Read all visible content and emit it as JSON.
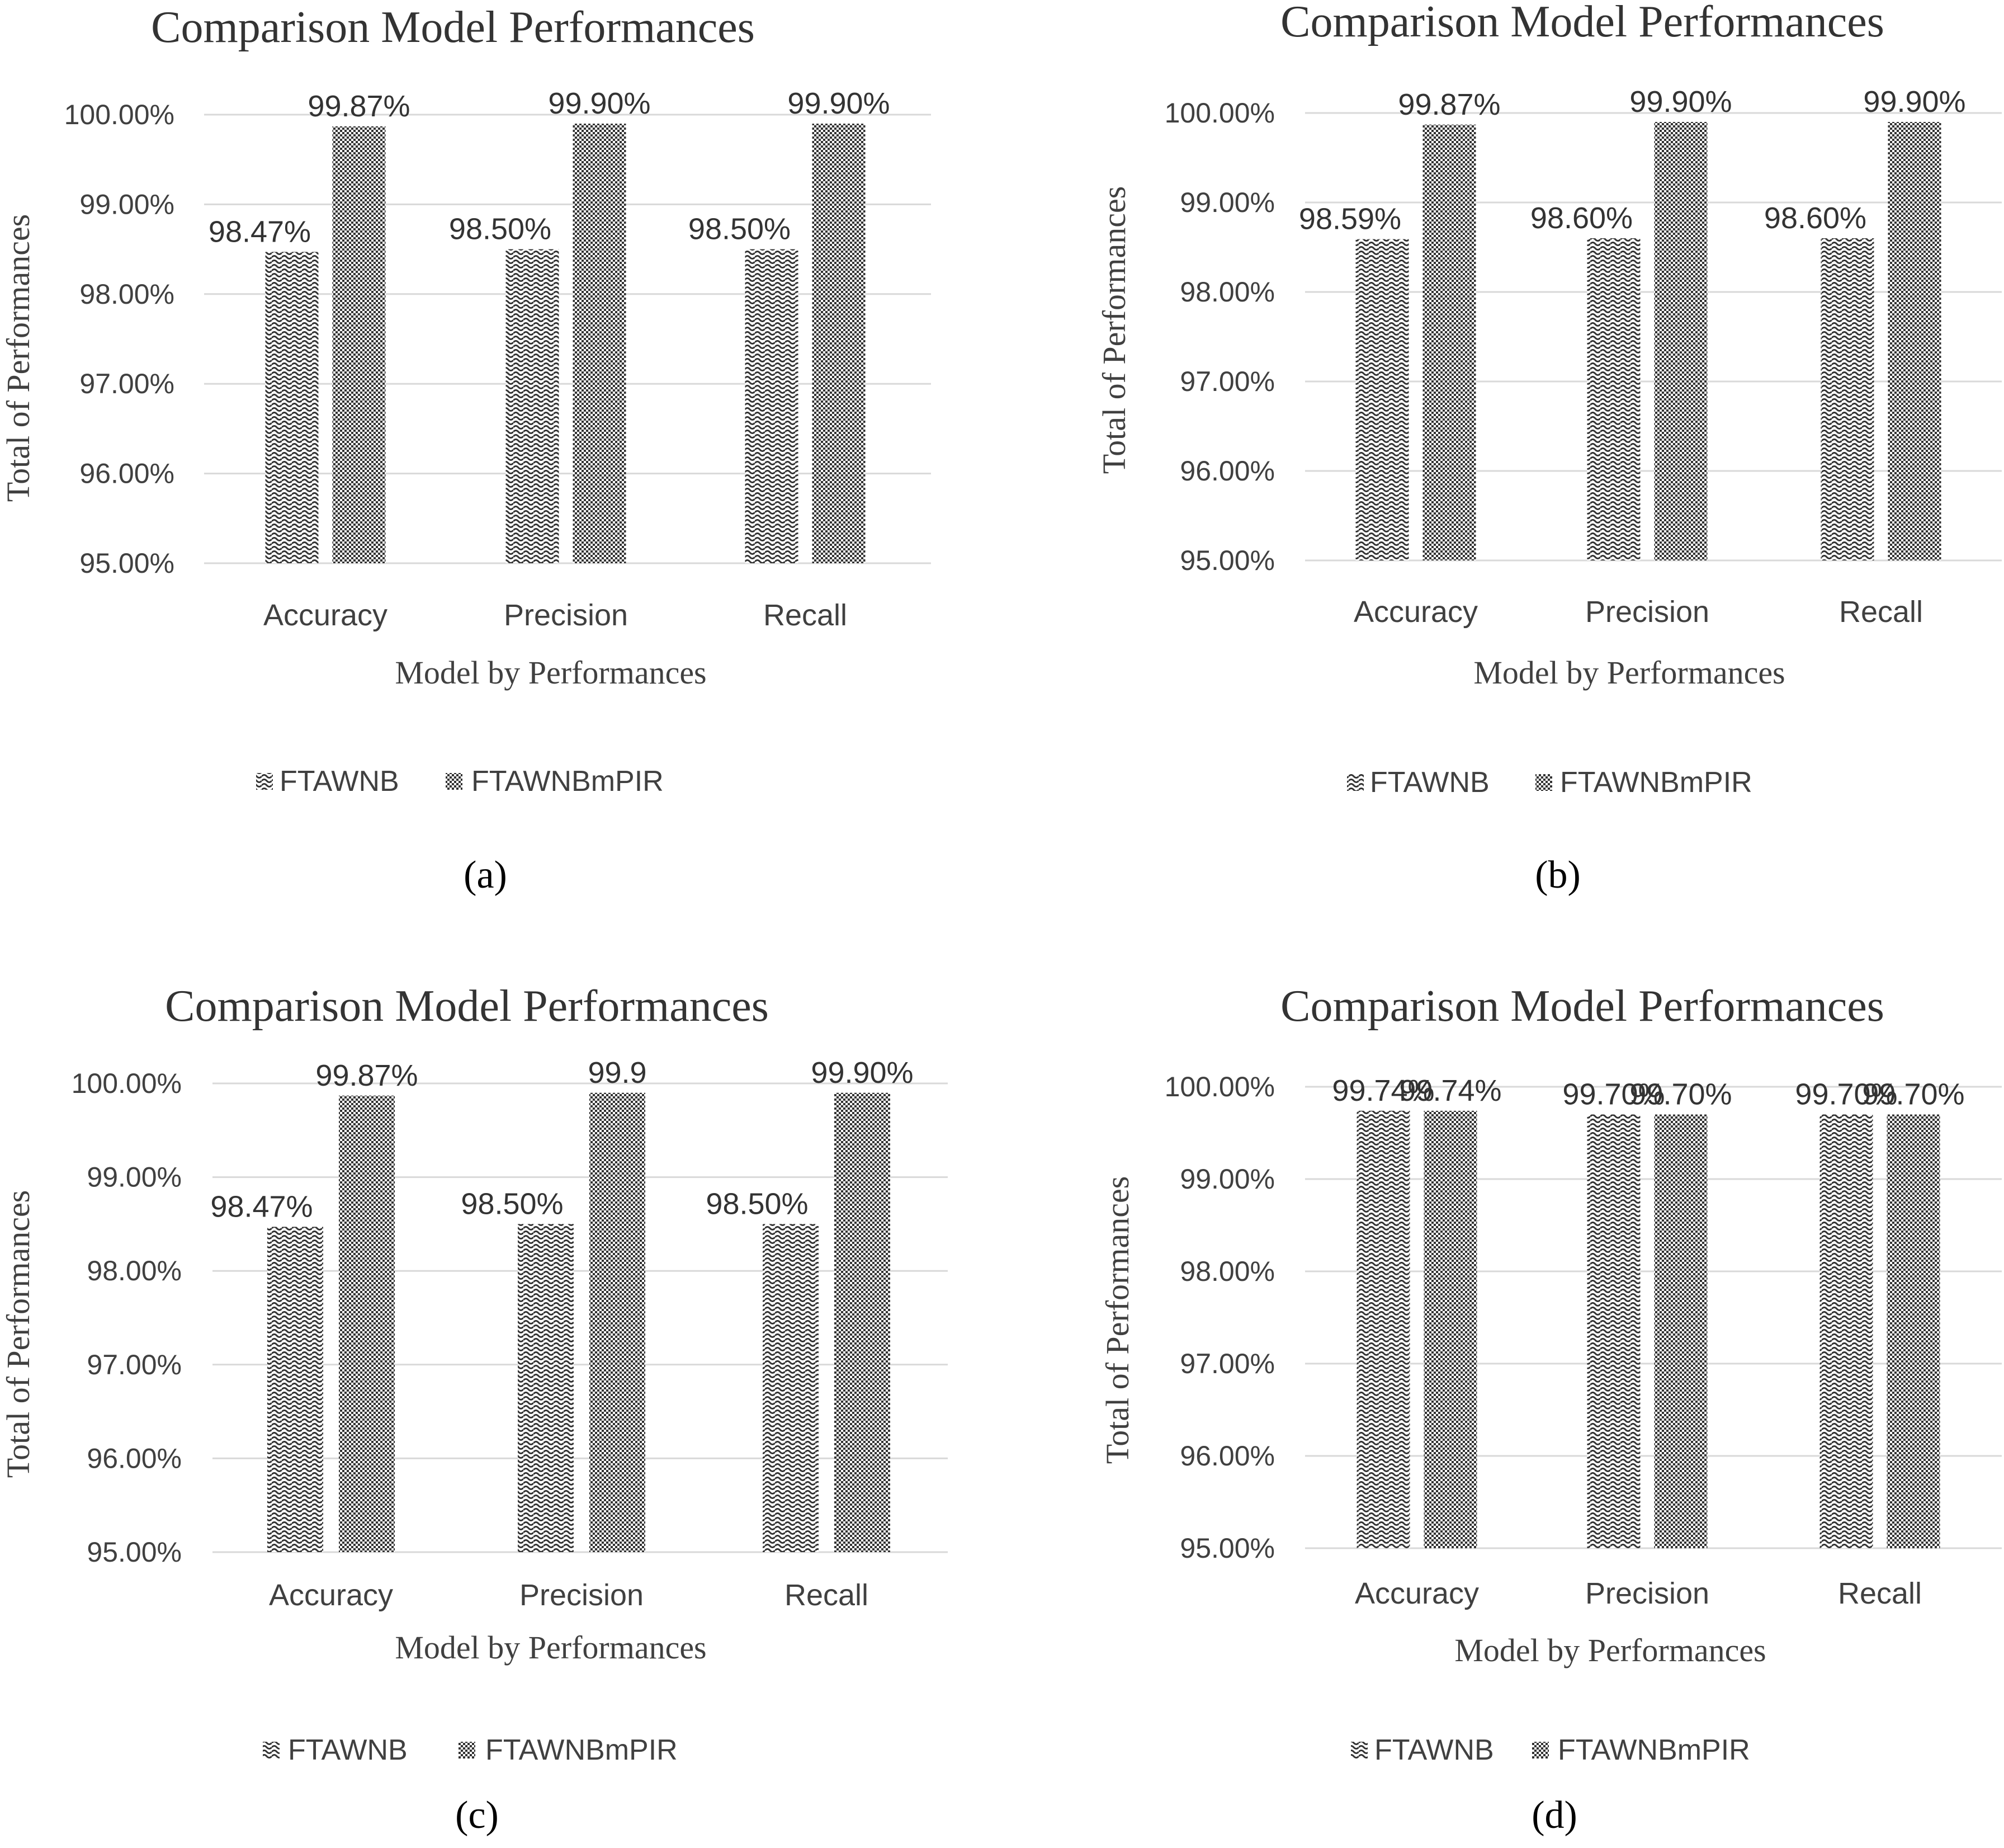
{
  "chart_data": [
    {
      "type": "bar",
      "panel": "(a)",
      "title": "Comparison  Model Performances",
      "xlabel": "Model by Performances",
      "ylabel": "Total of Performances",
      "categories": [
        "Accuracy",
        "Precision",
        "Recall"
      ],
      "yticks": [
        "95.00%",
        "96.00%",
        "97.00%",
        "98.00%",
        "99.00%",
        "100.00%"
      ],
      "ylim": [
        95,
        100
      ],
      "grid": true,
      "legend_position": "bottom",
      "series": [
        {
          "name": "FTAWNB",
          "values": [
            98.47,
            98.5,
            98.5
          ],
          "labels": [
            "98.47%",
            "98.50%",
            "98.50%"
          ],
          "pattern": "wave"
        },
        {
          "name": "FTAWNBmPIR",
          "values": [
            99.87,
            99.9,
            99.9
          ],
          "labels": [
            "99.87%",
            "99.90%",
            "99.90%"
          ],
          "pattern": "check"
        }
      ]
    },
    {
      "type": "bar",
      "panel": "(b)",
      "title": "Comparison Model Performances",
      "xlabel": "Model by Performances",
      "ylabel": "Total of Performances",
      "categories": [
        "Accuracy",
        "Precision",
        "Recall"
      ],
      "yticks": [
        "95.00%",
        "96.00%",
        "97.00%",
        "98.00%",
        "99.00%",
        "100.00%"
      ],
      "ylim": [
        95,
        100
      ],
      "grid": true,
      "legend_position": "bottom",
      "series": [
        {
          "name": "FTAWNB",
          "values": [
            98.59,
            98.6,
            98.6
          ],
          "labels": [
            "98.59%",
            "98.60%",
            "98.60%"
          ],
          "pattern": "wave"
        },
        {
          "name": "FTAWNBmPIR",
          "values": [
            99.87,
            99.9,
            99.9
          ],
          "labels": [
            "99.87%",
            "99.90%",
            "99.90%"
          ],
          "pattern": "check"
        }
      ]
    },
    {
      "type": "bar",
      "panel": "(c)",
      "title": "Comparison  Model Performances",
      "xlabel": "Model by Performances",
      "ylabel": "Total of Performances",
      "categories": [
        "Accuracy",
        "Precision",
        "Recall"
      ],
      "yticks": [
        "95.00%",
        "96.00%",
        "97.00%",
        "98.00%",
        "99.00%",
        "100.00%"
      ],
      "ylim": [
        95,
        100
      ],
      "grid": true,
      "legend_position": "bottom",
      "series": [
        {
          "name": "FTAWNB",
          "values": [
            98.47,
            98.5,
            98.5
          ],
          "labels": [
            "98.47%",
            "98.50%",
            "98.50%"
          ],
          "pattern": "wave"
        },
        {
          "name": "FTAWNBmPIR",
          "values": [
            99.87,
            99.9,
            99.9
          ],
          "labels": [
            "99.87%",
            "99.9",
            "99.90%"
          ],
          "pattern": "check"
        }
      ]
    },
    {
      "type": "bar",
      "panel": "(d)",
      "title": "Comparison Model Performances",
      "xlabel": "Model by Performances",
      "ylabel": "Total of Performances",
      "categories": [
        "Accuracy",
        "Precision",
        "Recall"
      ],
      "yticks": [
        "95.00%",
        "96.00%",
        "97.00%",
        "98.00%",
        "99.00%",
        "100.00%"
      ],
      "ylim": [
        95,
        100
      ],
      "grid": true,
      "legend_position": "bottom",
      "series": [
        {
          "name": "FTAWNB",
          "values": [
            99.74,
            99.7,
            99.7
          ],
          "labels": [
            "99.74%",
            "99.70%",
            "99.70%"
          ],
          "pattern": "wave"
        },
        {
          "name": "FTAWNBmPIR",
          "values": [
            99.74,
            99.7,
            99.7
          ],
          "labels": [
            "99.74%",
            "99.70%",
            "99.70%"
          ],
          "pattern": "check"
        }
      ]
    }
  ],
  "colors": {
    "pattern_ink": "#333333",
    "grid": "#d9d9d9",
    "text": "#404040"
  }
}
